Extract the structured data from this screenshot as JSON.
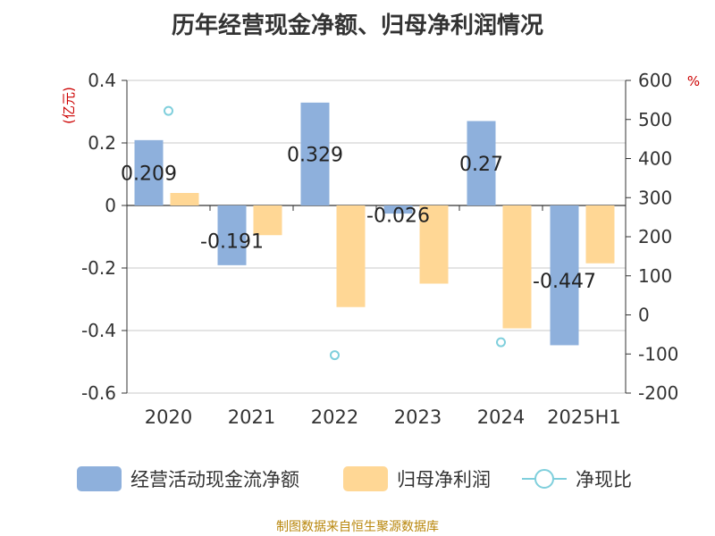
{
  "title": "历年经营现金净额、归母净利润情况",
  "source": "制图数据来自恒生聚源数据库",
  "colors": {
    "cash_flow": "#8eb0dc",
    "net_profit": "#ffd795",
    "ratio": "#7fcfdc",
    "axis_label_red": "#cc0000",
    "grid": "#c8c8c8",
    "axis": "#333333"
  },
  "chart_data": {
    "type": "bar",
    "title": "历年经营现金净额、归母净利润情况",
    "categories": [
      "2020",
      "2021",
      "2022",
      "2023",
      "2024",
      "2025H1"
    ],
    "y_left": {
      "label": "(亿元)",
      "ylim": [
        -0.6,
        0.4
      ],
      "ticks": [
        "0.4",
        "0.2",
        "0",
        "-0.2",
        "-0.4",
        "-0.6"
      ],
      "tick_values": [
        0.4,
        0.2,
        0,
        -0.2,
        -0.4,
        -0.6
      ]
    },
    "y_right": {
      "label": "%",
      "ylim": [
        -200,
        600
      ],
      "ticks": [
        "600",
        "500",
        "400",
        "300",
        "200",
        "100",
        "0",
        "-100",
        "-200"
      ],
      "tick_values": [
        600,
        500,
        400,
        300,
        200,
        100,
        0,
        -100,
        -200
      ]
    },
    "grid": true,
    "legend_position": "bottom",
    "series": [
      {
        "name": "经营活动现金流净额",
        "type": "bar",
        "axis": "left",
        "values": [
          0.209,
          -0.191,
          0.329,
          -0.026,
          0.27,
          -0.447
        ],
        "data_labels": [
          "0.209",
          "-0.191",
          "0.329",
          "-0.026",
          "0.27",
          "-0.447"
        ]
      },
      {
        "name": "归母净利润",
        "type": "bar",
        "axis": "left",
        "values": [
          0.04,
          -0.095,
          -0.325,
          -0.25,
          -0.393,
          -0.185
        ]
      },
      {
        "name": "净现比",
        "type": "scatter",
        "axis": "right",
        "values": [
          522,
          null,
          -103,
          null,
          -70,
          null
        ]
      }
    ]
  }
}
